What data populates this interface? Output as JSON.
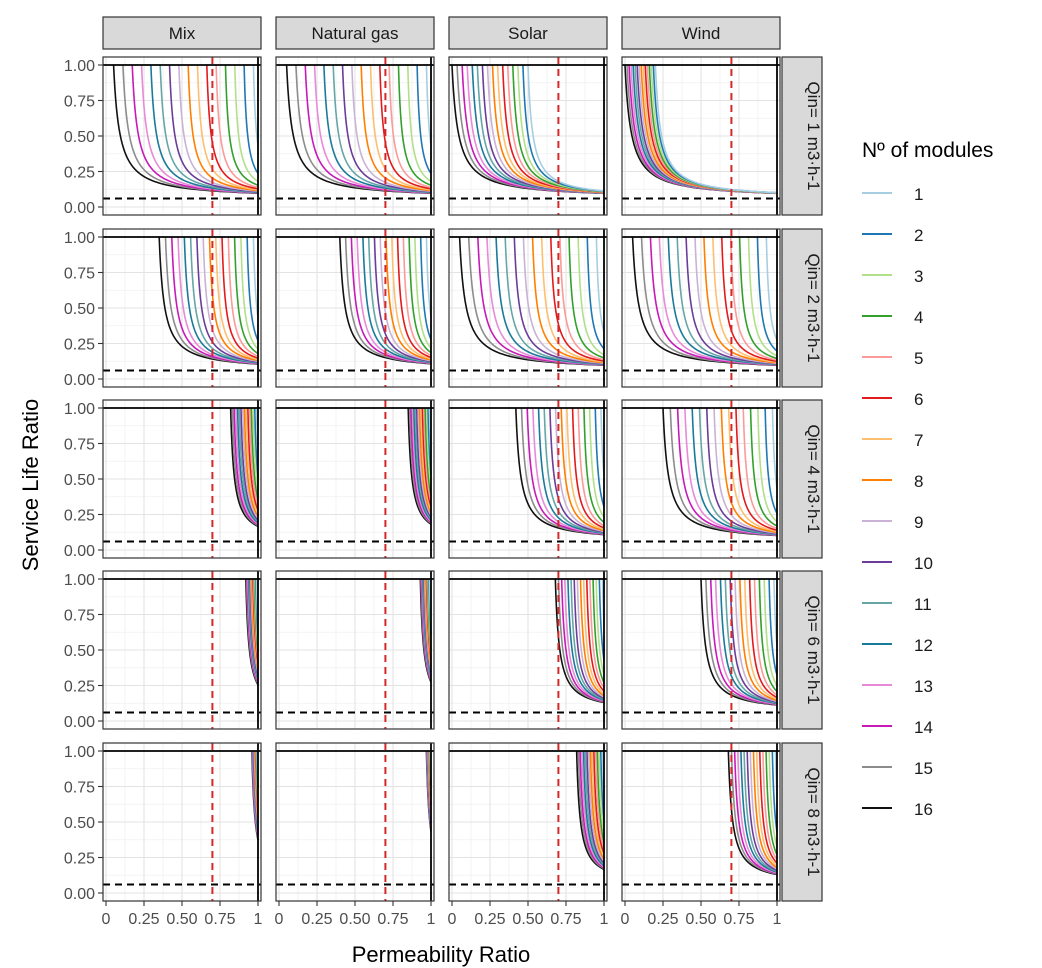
{
  "chart_data": {
    "type": "line",
    "facet_columns": [
      "Mix",
      "Natural gas",
      "Solar",
      "Wind"
    ],
    "facet_rows": [
      "Qin= 1 m3·h-1",
      "Qin= 2 m3·h-1",
      "Qin= 4 m3·h-1",
      "Qin= 6 m3·h-1",
      "Qin= 8 m3·h-1"
    ],
    "xlabel": "Permeability Ratio",
    "ylabel": "Service Life Ratio",
    "xlim": [
      0,
      1
    ],
    "ylim": [
      0,
      1
    ],
    "x_ticks": [
      "0",
      "0.25",
      "0.50",
      "0.75",
      "1"
    ],
    "y_ticks": [
      "0.00",
      "0.25",
      "0.50",
      "0.75",
      "1.00"
    ],
    "grid": true,
    "legend": {
      "title": "Nº of modules",
      "placement": "right",
      "entries": [
        "1",
        "2",
        "3",
        "4",
        "5",
        "6",
        "7",
        "8",
        "9",
        "10",
        "11",
        "12",
        "13",
        "14",
        "15",
        "16"
      ]
    },
    "series_colors": [
      "#a6cee3",
      "#1f78b4",
      "#b2df8a",
      "#33a02c",
      "#fb9a99",
      "#e31a1c",
      "#fdbf6f",
      "#ff7f00",
      "#cab2d6",
      "#6a3d9a",
      "#66a6a6",
      "#1a7a9a",
      "#e88ad8",
      "#c71ab8",
      "#8c8c8c",
      "#111111"
    ],
    "reference_lines": [
      {
        "orientation": "vertical",
        "x": 0.7,
        "style": "dashed",
        "color": "#d62728"
      },
      {
        "orientation": "horizontal",
        "y": 0.06,
        "style": "dashed",
        "color": "#000000"
      },
      {
        "orientation": "horizontal",
        "y": 1.0,
        "style": "solid",
        "color": "#000000"
      },
      {
        "orientation": "vertical",
        "x": 1.0,
        "style": "solid",
        "color": "#000000"
      }
    ],
    "curve_shape": "service_life = min(1, 0.06 + k / (x_start_offset)) — steep decay from 1.00 to about 0.06 as permeability ratio increases",
    "panels": [
      {
        "col": "Mix",
        "row": "Qin= 1 m3·h-1",
        "curve_start_x": {
          "min": 0.05,
          "max": 0.97
        }
      },
      {
        "col": "Natural gas",
        "row": "Qin= 1 m3·h-1",
        "curve_start_x": {
          "min": 0.05,
          "max": 0.97
        }
      },
      {
        "col": "Solar",
        "row": "Qin= 1 m3·h-1",
        "curve_start_x": {
          "min": 0.0,
          "max": 0.5
        }
      },
      {
        "col": "Wind",
        "row": "Qin= 1 m3·h-1",
        "curve_start_x": {
          "min": 0.0,
          "max": 0.2
        }
      },
      {
        "col": "Mix",
        "row": "Qin= 2 m3·h-1",
        "curve_start_x": {
          "min": 0.35,
          "max": 0.97
        }
      },
      {
        "col": "Natural gas",
        "row": "Qin= 2 m3·h-1",
        "curve_start_x": {
          "min": 0.4,
          "max": 0.97
        }
      },
      {
        "col": "Solar",
        "row": "Qin= 2 m3·h-1",
        "curve_start_x": {
          "min": 0.05,
          "max": 0.95
        }
      },
      {
        "col": "Wind",
        "row": "Qin= 2 m3·h-1",
        "curve_start_x": {
          "min": 0.05,
          "max": 0.93
        }
      },
      {
        "col": "Mix",
        "row": "Qin= 4 m3·h-1",
        "curve_start_x": {
          "min": 0.82,
          "max": 0.99
        }
      },
      {
        "col": "Natural gas",
        "row": "Qin= 4 m3·h-1",
        "curve_start_x": {
          "min": 0.85,
          "max": 0.99
        }
      },
      {
        "col": "Solar",
        "row": "Qin= 4 m3·h-1",
        "curve_start_x": {
          "min": 0.42,
          "max": 0.98
        }
      },
      {
        "col": "Wind",
        "row": "Qin= 4 m3·h-1",
        "curve_start_x": {
          "min": 0.25,
          "max": 0.97
        }
      },
      {
        "col": "Mix",
        "row": "Qin= 6 m3·h-1",
        "curve_start_x": {
          "min": 0.92,
          "max": 0.99
        }
      },
      {
        "col": "Natural gas",
        "row": "Qin= 6 m3·h-1",
        "curve_start_x": {
          "min": 0.93,
          "max": 0.99
        }
      },
      {
        "col": "Solar",
        "row": "Qin= 6 m3·h-1",
        "curve_start_x": {
          "min": 0.68,
          "max": 0.99
        }
      },
      {
        "col": "Wind",
        "row": "Qin= 6 m3·h-1",
        "curve_start_x": {
          "min": 0.5,
          "max": 0.98
        }
      },
      {
        "col": "Mix",
        "row": "Qin= 8 m3·h-1",
        "curve_start_x": {
          "min": 0.96,
          "max": 0.995
        }
      },
      {
        "col": "Natural gas",
        "row": "Qin= 8 m3·h-1",
        "curve_start_x": {
          "min": 0.97,
          "max": 0.995
        }
      },
      {
        "col": "Solar",
        "row": "Qin= 8 m3·h-1",
        "curve_start_x": {
          "min": 0.82,
          "max": 0.99
        }
      },
      {
        "col": "Wind",
        "row": "Qin= 8 m3·h-1",
        "curve_start_x": {
          "min": 0.68,
          "max": 0.99
        }
      }
    ]
  }
}
